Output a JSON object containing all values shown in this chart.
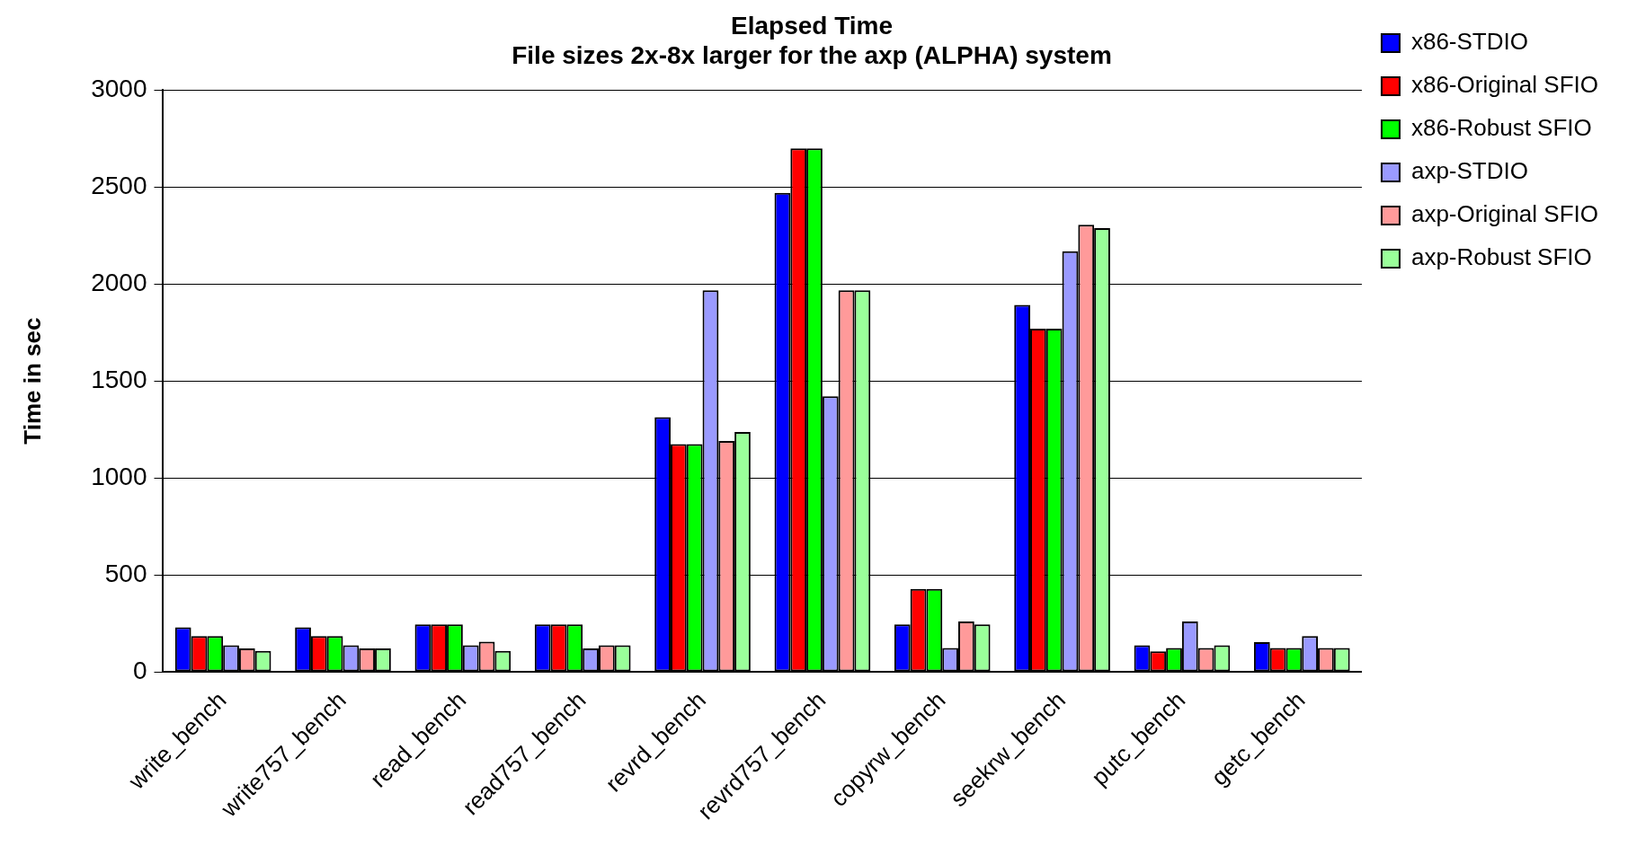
{
  "chart_data": {
    "type": "bar",
    "title": [
      "Elapsed Time",
      "File sizes 2x-8x larger for the axp (ALPHA) system"
    ],
    "ylabel": "Time in sec",
    "categories": [
      "write_bench",
      "write757_bench",
      "read_bench",
      "read757_bench",
      "revrd_bench",
      "revrd757_bench",
      "copyrw_bench",
      "seekrw_bench",
      "putc_bench",
      "getc_bench"
    ],
    "series": [
      {
        "name": "x86-STDIO",
        "color": "#0000ff",
        "values": [
          229,
          229,
          245,
          245,
          1313,
          2470,
          245,
          1892,
          137,
          153
        ]
      },
      {
        "name": "x86-Original SFIO",
        "color": "#ff0000",
        "values": [
          184,
          184,
          245,
          245,
          1174,
          2699,
          427,
          1769,
          106,
          123
        ]
      },
      {
        "name": "x86-Robust SFIO",
        "color": "#00ff00",
        "values": [
          184,
          184,
          245,
          245,
          1174,
          2699,
          427,
          1769,
          123,
          123
        ]
      },
      {
        "name": "axp-STDIO",
        "color": "#9a9aff",
        "values": [
          137,
          137,
          137,
          121,
          1967,
          1421,
          123,
          2168,
          260,
          184
        ]
      },
      {
        "name": "axp-Original SFIO",
        "color": "#ff9a9a",
        "values": [
          121,
          121,
          155,
          137,
          1190,
          1967,
          260,
          2305,
          123,
          123
        ]
      },
      {
        "name": "axp-Robust SFIO",
        "color": "#9aff9a",
        "values": [
          108,
          121,
          108,
          137,
          1237,
          1967,
          245,
          2288,
          137,
          123
        ]
      }
    ],
    "ylim": [
      0,
      3000
    ],
    "yticks": [
      0,
      500,
      1000,
      1500,
      2000,
      2500,
      3000
    ],
    "grid": "y",
    "legend": "top right"
  }
}
